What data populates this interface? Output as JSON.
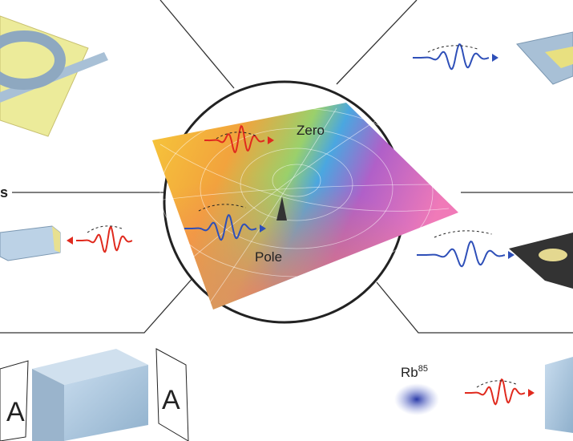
{
  "labels": {
    "zero": "Zero",
    "pole": "Pole",
    "rb": "Rb",
    "rb_mass": "85",
    "left_cut": "s",
    "letter_left": "A",
    "letter_right": "A"
  }
}
